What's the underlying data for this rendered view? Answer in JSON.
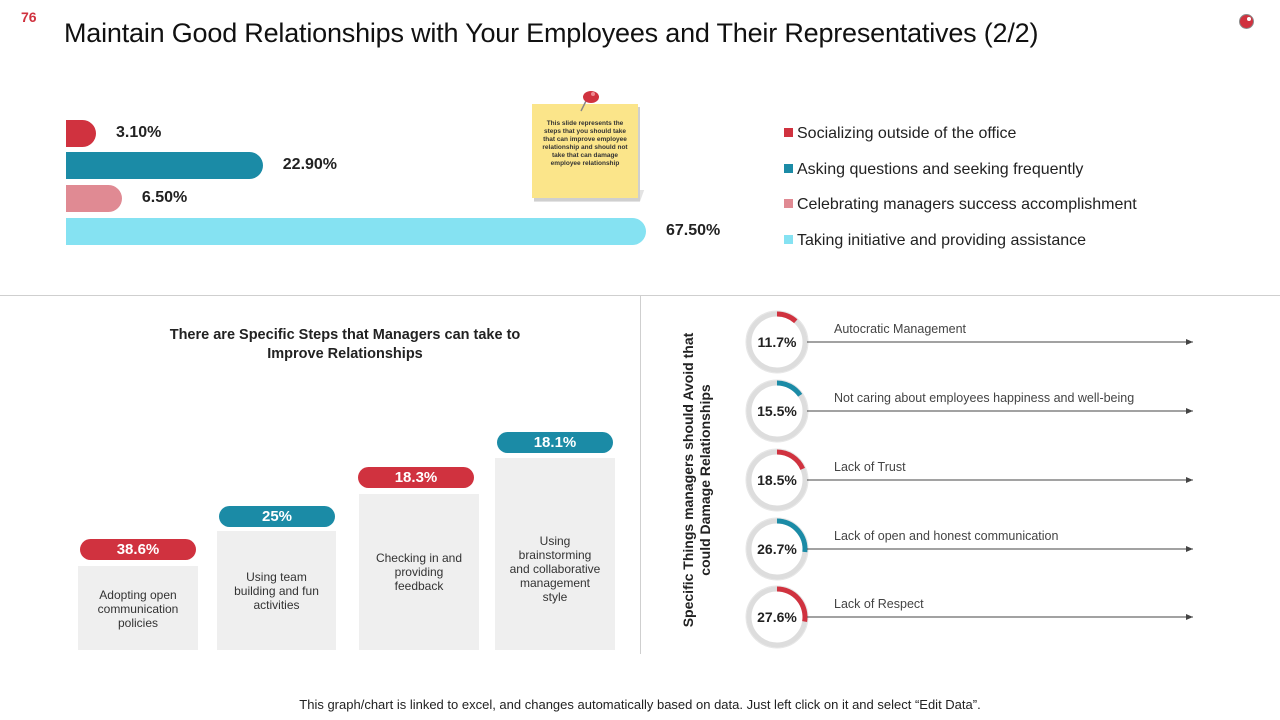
{
  "header": {
    "page_number": "76",
    "title": "Maintain Good Relationships with Your Employees and Their Representatives (2/2)"
  },
  "sticky_note": {
    "text": "This slide represents the steps that you should take that can improve employee relationship and should not take that can damage employee relationship"
  },
  "footer": {
    "note": "This graph/chart is linked to excel, and changes automatically based on data. Just left click on it and select “Edit Data”."
  },
  "colors": {
    "red": "#d0323f",
    "teal": "#1b8ba6",
    "pink": "#e08a93",
    "light_blue": "#85e2f2",
    "box_gray": "#efefef",
    "ring_gray": "#dddddd"
  },
  "chart_data": [
    {
      "type": "bar",
      "orientation": "horizontal",
      "categories": [
        "Socializing outside of the office",
        "Asking questions and seeking frequently",
        "Celebrating managers success accomplishment",
        "Taking initiative and providing assistance"
      ],
      "values": [
        3.1,
        22.9,
        6.5,
        67.5
      ],
      "value_labels": [
        "3.10%",
        "22.90%",
        "6.50%",
        "67.50%"
      ],
      "series_colors": [
        "#d0323f",
        "#1b8ba6",
        "#e08a93",
        "#85e2f2"
      ],
      "xlim": [
        0,
        100
      ],
      "legend": "right"
    },
    {
      "type": "bar",
      "title": "There are Specific Steps that Managers can take to Improve Relationships",
      "categories": [
        "Adopting open communication policies",
        "Using team building and fun activities",
        "Checking in and providing feedback",
        "Using brainstorming and collaborative management style"
      ],
      "values": [
        38.6,
        25,
        18.3,
        18.1
      ],
      "value_labels": [
        "38.6%",
        "25%",
        "18.3%",
        "18.1%"
      ],
      "pill_colors": [
        "#d0323f",
        "#1b8ba6",
        "#d0323f",
        "#1b8ba6"
      ]
    },
    {
      "type": "pie",
      "style": "donut",
      "title": "Specific Things managers should Avoid that could Damage Relationships",
      "categories": [
        "Autocratic Management",
        "Not caring about employees happiness and well-being",
        "Lack of Trust",
        "Lack of open and honest communication",
        "Lack of Respect"
      ],
      "values": [
        11.7,
        15.5,
        18.5,
        26.7,
        27.6
      ],
      "value_labels": [
        "11.7%",
        "15.5%",
        "18.5%",
        "26.7%",
        "27.6%"
      ],
      "arc_colors": [
        "#d0323f",
        "#1b8ba6",
        "#d0323f",
        "#1b8ba6",
        "#d0323f"
      ]
    }
  ]
}
